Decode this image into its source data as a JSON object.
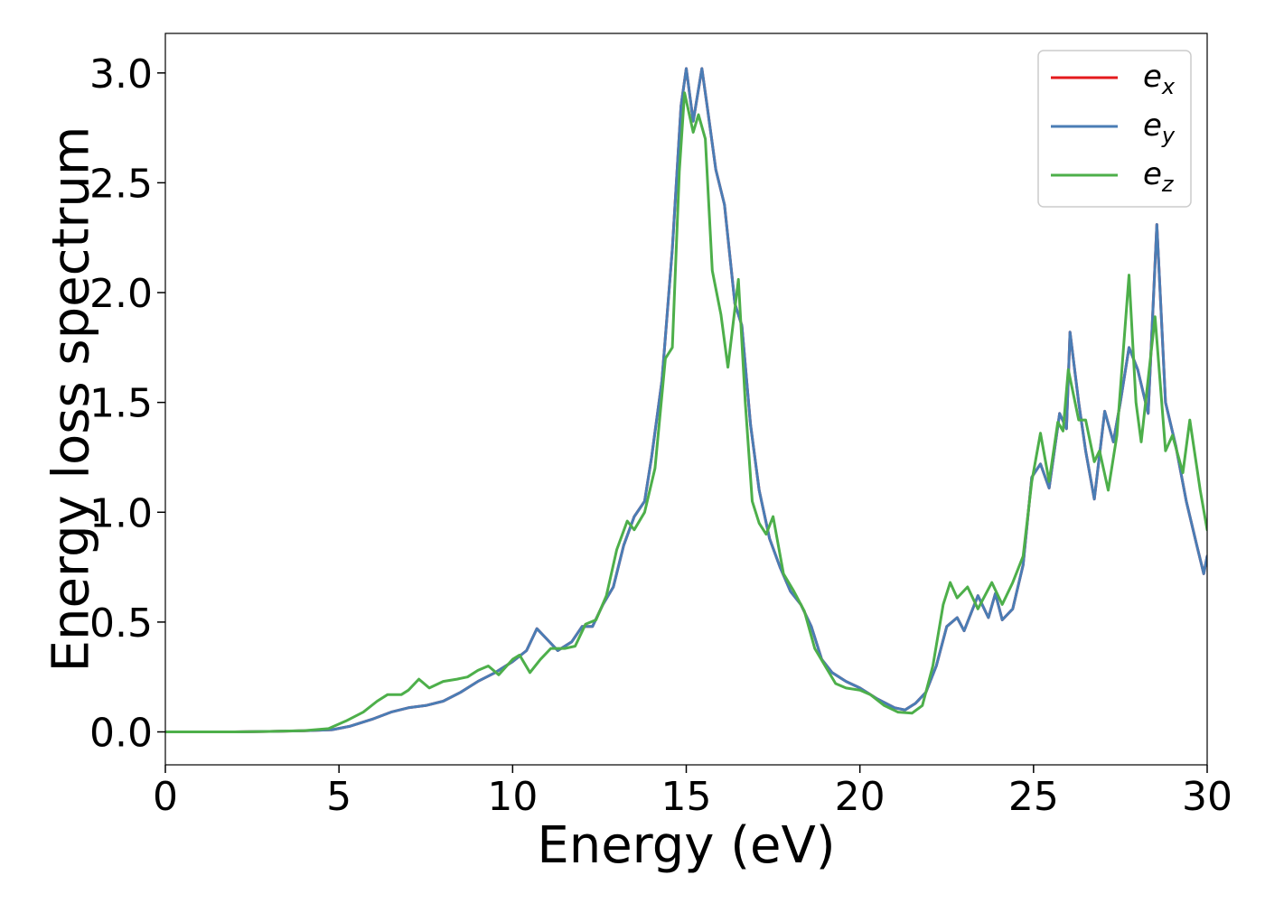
{
  "chart_data": {
    "type": "line",
    "xlabel": "Energy (eV)",
    "ylabel": "Energy loss spectrum",
    "xlim": [
      0,
      30
    ],
    "ylim": [
      -0.15,
      3.18
    ],
    "x_ticks": [
      "0",
      "5",
      "10",
      "15",
      "20",
      "25",
      "30"
    ],
    "y_ticks": [
      "0.0",
      "0.5",
      "1.0",
      "1.5",
      "2.0",
      "2.5",
      "3.0"
    ],
    "grid": false,
    "legend_position": "top-right",
    "series": [
      {
        "name": "e",
        "subscript": "x",
        "color": "#e41a1c",
        "points": [
          [
            0,
            0
          ],
          [
            1,
            0
          ],
          [
            2,
            0
          ],
          [
            3,
            0.002
          ],
          [
            4,
            0.005
          ],
          [
            4.8,
            0.01
          ],
          [
            5.3,
            0.025
          ],
          [
            6,
            0.06
          ],
          [
            6.5,
            0.09
          ],
          [
            7,
            0.11
          ],
          [
            7.5,
            0.12
          ],
          [
            8,
            0.14
          ],
          [
            8.5,
            0.18
          ],
          [
            9,
            0.23
          ],
          [
            9.5,
            0.27
          ],
          [
            10,
            0.32
          ],
          [
            10.4,
            0.37
          ],
          [
            10.7,
            0.47
          ],
          [
            11,
            0.42
          ],
          [
            11.3,
            0.37
          ],
          [
            11.7,
            0.41
          ],
          [
            12,
            0.48
          ],
          [
            12.3,
            0.48
          ],
          [
            12.6,
            0.58
          ],
          [
            12.9,
            0.66
          ],
          [
            13.2,
            0.85
          ],
          [
            13.5,
            0.98
          ],
          [
            13.8,
            1.05
          ],
          [
            14,
            1.25
          ],
          [
            14.3,
            1.6
          ],
          [
            14.6,
            2.2
          ],
          [
            14.85,
            2.85
          ],
          [
            15,
            3.02
          ],
          [
            15.2,
            2.78
          ],
          [
            15.45,
            3.02
          ],
          [
            15.6,
            2.85
          ],
          [
            15.85,
            2.56
          ],
          [
            16.1,
            2.4
          ],
          [
            16.4,
            1.95
          ],
          [
            16.6,
            1.85
          ],
          [
            16.85,
            1.4
          ],
          [
            17.1,
            1.1
          ],
          [
            17.4,
            0.88
          ],
          [
            17.7,
            0.75
          ],
          [
            18,
            0.64
          ],
          [
            18.3,
            0.58
          ],
          [
            18.6,
            0.48
          ],
          [
            18.9,
            0.33
          ],
          [
            19.2,
            0.27
          ],
          [
            19.6,
            0.23
          ],
          [
            20,
            0.2
          ],
          [
            20.5,
            0.15
          ],
          [
            21,
            0.11
          ],
          [
            21.3,
            0.1
          ],
          [
            21.6,
            0.13
          ],
          [
            21.9,
            0.18
          ],
          [
            22.2,
            0.3
          ],
          [
            22.5,
            0.48
          ],
          [
            22.8,
            0.52
          ],
          [
            23,
            0.46
          ],
          [
            23.4,
            0.62
          ],
          [
            23.7,
            0.52
          ],
          [
            23.9,
            0.63
          ],
          [
            24.1,
            0.51
          ],
          [
            24.4,
            0.56
          ],
          [
            24.7,
            0.76
          ],
          [
            24.95,
            1.16
          ],
          [
            25.2,
            1.22
          ],
          [
            25.45,
            1.11
          ],
          [
            25.75,
            1.45
          ],
          [
            25.95,
            1.38
          ],
          [
            26.05,
            1.82
          ],
          [
            26.3,
            1.5
          ],
          [
            26.5,
            1.28
          ],
          [
            26.75,
            1.06
          ],
          [
            27.05,
            1.46
          ],
          [
            27.3,
            1.32
          ],
          [
            27.5,
            1.5
          ],
          [
            27.75,
            1.75
          ],
          [
            28,
            1.65
          ],
          [
            28.3,
            1.45
          ],
          [
            28.55,
            2.31
          ],
          [
            28.8,
            1.5
          ],
          [
            29.1,
            1.3
          ],
          [
            29.4,
            1.05
          ],
          [
            29.7,
            0.85
          ],
          [
            29.9,
            0.72
          ],
          [
            30,
            0.8
          ]
        ]
      },
      {
        "name": "e",
        "subscript": "y",
        "color": "#4a7db5",
        "points": [
          [
            0,
            0
          ],
          [
            1,
            0
          ],
          [
            2,
            0
          ],
          [
            3,
            0.002
          ],
          [
            4,
            0.005
          ],
          [
            4.8,
            0.01
          ],
          [
            5.3,
            0.025
          ],
          [
            6,
            0.06
          ],
          [
            6.5,
            0.09
          ],
          [
            7,
            0.11
          ],
          [
            7.5,
            0.12
          ],
          [
            8,
            0.14
          ],
          [
            8.5,
            0.18
          ],
          [
            9,
            0.23
          ],
          [
            9.5,
            0.27
          ],
          [
            10,
            0.32
          ],
          [
            10.4,
            0.37
          ],
          [
            10.7,
            0.47
          ],
          [
            11,
            0.42
          ],
          [
            11.3,
            0.37
          ],
          [
            11.7,
            0.41
          ],
          [
            12,
            0.48
          ],
          [
            12.3,
            0.48
          ],
          [
            12.6,
            0.58
          ],
          [
            12.9,
            0.66
          ],
          [
            13.2,
            0.85
          ],
          [
            13.5,
            0.98
          ],
          [
            13.8,
            1.05
          ],
          [
            14,
            1.25
          ],
          [
            14.3,
            1.6
          ],
          [
            14.6,
            2.2
          ],
          [
            14.85,
            2.85
          ],
          [
            15,
            3.02
          ],
          [
            15.2,
            2.78
          ],
          [
            15.45,
            3.02
          ],
          [
            15.6,
            2.85
          ],
          [
            15.85,
            2.56
          ],
          [
            16.1,
            2.4
          ],
          [
            16.4,
            1.95
          ],
          [
            16.6,
            1.85
          ],
          [
            16.85,
            1.4
          ],
          [
            17.1,
            1.1
          ],
          [
            17.4,
            0.88
          ],
          [
            17.7,
            0.75
          ],
          [
            18,
            0.64
          ],
          [
            18.3,
            0.58
          ],
          [
            18.6,
            0.48
          ],
          [
            18.9,
            0.33
          ],
          [
            19.2,
            0.27
          ],
          [
            19.6,
            0.23
          ],
          [
            20,
            0.2
          ],
          [
            20.5,
            0.15
          ],
          [
            21,
            0.11
          ],
          [
            21.3,
            0.1
          ],
          [
            21.6,
            0.13
          ],
          [
            21.9,
            0.18
          ],
          [
            22.2,
            0.3
          ],
          [
            22.5,
            0.48
          ],
          [
            22.8,
            0.52
          ],
          [
            23,
            0.46
          ],
          [
            23.4,
            0.62
          ],
          [
            23.7,
            0.52
          ],
          [
            23.9,
            0.63
          ],
          [
            24.1,
            0.51
          ],
          [
            24.4,
            0.56
          ],
          [
            24.7,
            0.76
          ],
          [
            24.95,
            1.16
          ],
          [
            25.2,
            1.22
          ],
          [
            25.45,
            1.11
          ],
          [
            25.75,
            1.45
          ],
          [
            25.95,
            1.38
          ],
          [
            26.05,
            1.82
          ],
          [
            26.3,
            1.5
          ],
          [
            26.5,
            1.28
          ],
          [
            26.75,
            1.06
          ],
          [
            27.05,
            1.46
          ],
          [
            27.3,
            1.32
          ],
          [
            27.5,
            1.5
          ],
          [
            27.75,
            1.75
          ],
          [
            28,
            1.65
          ],
          [
            28.3,
            1.45
          ],
          [
            28.55,
            2.31
          ],
          [
            28.8,
            1.5
          ],
          [
            29.1,
            1.3
          ],
          [
            29.4,
            1.05
          ],
          [
            29.7,
            0.85
          ],
          [
            29.9,
            0.72
          ],
          [
            30,
            0.8
          ]
        ]
      },
      {
        "name": "e",
        "subscript": "z",
        "color": "#4daf4a",
        "points": [
          [
            0,
            0
          ],
          [
            1,
            0
          ],
          [
            2,
            0
          ],
          [
            3,
            0.002
          ],
          [
            4,
            0.006
          ],
          [
            4.7,
            0.015
          ],
          [
            5.2,
            0.05
          ],
          [
            5.7,
            0.09
          ],
          [
            6.1,
            0.14
          ],
          [
            6.4,
            0.17
          ],
          [
            6.8,
            0.17
          ],
          [
            7.0,
            0.19
          ],
          [
            7.3,
            0.24
          ],
          [
            7.6,
            0.2
          ],
          [
            8,
            0.23
          ],
          [
            8.4,
            0.24
          ],
          [
            8.7,
            0.25
          ],
          [
            9,
            0.28
          ],
          [
            9.3,
            0.3
          ],
          [
            9.6,
            0.26
          ],
          [
            10,
            0.33
          ],
          [
            10.2,
            0.35
          ],
          [
            10.5,
            0.27
          ],
          [
            10.8,
            0.33
          ],
          [
            11.1,
            0.38
          ],
          [
            11.5,
            0.38
          ],
          [
            11.8,
            0.39
          ],
          [
            12.1,
            0.49
          ],
          [
            12.4,
            0.51
          ],
          [
            12.7,
            0.62
          ],
          [
            13.0,
            0.83
          ],
          [
            13.3,
            0.96
          ],
          [
            13.5,
            0.92
          ],
          [
            13.8,
            1.0
          ],
          [
            14.1,
            1.2
          ],
          [
            14.4,
            1.7
          ],
          [
            14.6,
            1.75
          ],
          [
            14.8,
            2.55
          ],
          [
            14.95,
            2.91
          ],
          [
            15.2,
            2.73
          ],
          [
            15.35,
            2.81
          ],
          [
            15.55,
            2.7
          ],
          [
            15.75,
            2.1
          ],
          [
            16,
            1.9
          ],
          [
            16.2,
            1.66
          ],
          [
            16.5,
            2.06
          ],
          [
            16.7,
            1.5
          ],
          [
            16.9,
            1.05
          ],
          [
            17.1,
            0.95
          ],
          [
            17.3,
            0.9
          ],
          [
            17.5,
            0.98
          ],
          [
            17.8,
            0.72
          ],
          [
            18.1,
            0.64
          ],
          [
            18.4,
            0.55
          ],
          [
            18.7,
            0.38
          ],
          [
            19,
            0.3
          ],
          [
            19.3,
            0.22
          ],
          [
            19.6,
            0.2
          ],
          [
            20,
            0.19
          ],
          [
            20.3,
            0.17
          ],
          [
            20.7,
            0.12
          ],
          [
            21.1,
            0.09
          ],
          [
            21.5,
            0.085
          ],
          [
            21.8,
            0.12
          ],
          [
            22.1,
            0.3
          ],
          [
            22.4,
            0.58
          ],
          [
            22.6,
            0.68
          ],
          [
            22.8,
            0.61
          ],
          [
            23.1,
            0.66
          ],
          [
            23.4,
            0.56
          ],
          [
            23.8,
            0.68
          ],
          [
            24.1,
            0.58
          ],
          [
            24.4,
            0.68
          ],
          [
            24.7,
            0.8
          ],
          [
            24.95,
            1.14
          ],
          [
            25.2,
            1.36
          ],
          [
            25.45,
            1.14
          ],
          [
            25.7,
            1.41
          ],
          [
            25.85,
            1.37
          ],
          [
            26.0,
            1.65
          ],
          [
            26.3,
            1.42
          ],
          [
            26.5,
            1.42
          ],
          [
            26.75,
            1.23
          ],
          [
            26.9,
            1.28
          ],
          [
            27.15,
            1.1
          ],
          [
            27.4,
            1.35
          ],
          [
            27.75,
            2.08
          ],
          [
            27.95,
            1.5
          ],
          [
            28.1,
            1.32
          ],
          [
            28.5,
            1.89
          ],
          [
            28.8,
            1.28
          ],
          [
            29.0,
            1.35
          ],
          [
            29.3,
            1.18
          ],
          [
            29.5,
            1.42
          ],
          [
            29.8,
            1.1
          ],
          [
            30,
            0.92
          ]
        ]
      }
    ]
  }
}
